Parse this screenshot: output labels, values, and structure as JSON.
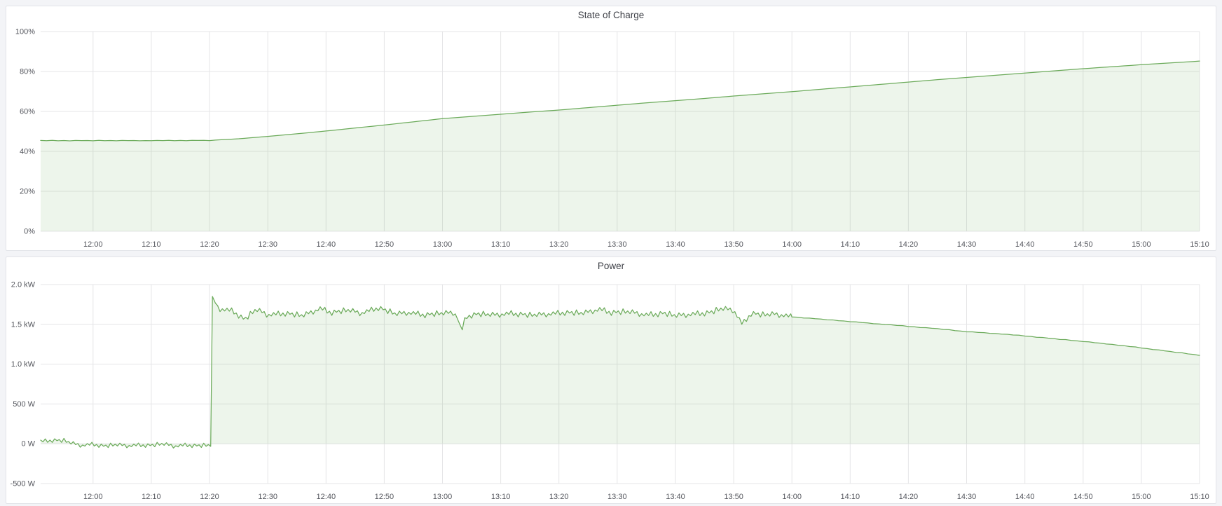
{
  "colors": {
    "series_green_line": "#6cab5b",
    "series_green_fill": "rgba(108,171,91,0.12)",
    "grid_line": "#e5e5e7",
    "panel_background": "#ffffff",
    "page_background": "#f3f4f7",
    "tick_text": "#55575e",
    "title_text": "#3f4148"
  },
  "noise_cycle": [
    0.55,
    -0.3,
    0.9,
    -0.75,
    0.15,
    -1,
    0.65,
    -0.15,
    0.4,
    -0.85,
    1,
    -0.45,
    0.25,
    -0.6,
    0.8,
    -0.2,
    0.5,
    -0.95,
    0.1,
    -0.5
  ],
  "chart_data": [
    {
      "type": "area",
      "title": "State of Charge",
      "xlabel": "",
      "ylabel": "",
      "unit": "percent",
      "ylim": [
        0,
        100
      ],
      "x_range_minutes": [
        711,
        910
      ],
      "grid": true,
      "legend": "none",
      "y_ticks": [
        {
          "v": 100,
          "label": "100%"
        },
        {
          "v": 80,
          "label": "80%"
        },
        {
          "v": 60,
          "label": "60%"
        },
        {
          "v": 40,
          "label": "40%"
        },
        {
          "v": 20,
          "label": "20%"
        },
        {
          "v": 0,
          "label": "0%"
        }
      ],
      "x_ticks": [
        {
          "t": 720,
          "label": "12:00"
        },
        {
          "t": 730,
          "label": "12:10"
        },
        {
          "t": 740,
          "label": "12:20"
        },
        {
          "t": 750,
          "label": "12:30"
        },
        {
          "t": 760,
          "label": "12:40"
        },
        {
          "t": 770,
          "label": "12:50"
        },
        {
          "t": 780,
          "label": "13:00"
        },
        {
          "t": 790,
          "label": "13:10"
        },
        {
          "t": 800,
          "label": "13:20"
        },
        {
          "t": 810,
          "label": "13:30"
        },
        {
          "t": 820,
          "label": "13:40"
        },
        {
          "t": 830,
          "label": "13:50"
        },
        {
          "t": 840,
          "label": "14:00"
        },
        {
          "t": 850,
          "label": "14:10"
        },
        {
          "t": 860,
          "label": "14:20"
        },
        {
          "t": 870,
          "label": "14:30"
        },
        {
          "t": 880,
          "label": "14:40"
        },
        {
          "t": 890,
          "label": "14:50"
        },
        {
          "t": 900,
          "label": "15:00"
        },
        {
          "t": 910,
          "label": "15:10"
        }
      ],
      "series": [
        {
          "name": "State of Charge",
          "fill_to_value": 0,
          "anchors": [
            [
              711,
              45.4
            ],
            [
              720,
              45.4
            ],
            [
              730,
              45.4
            ],
            [
              740,
              45.5
            ],
            [
              745,
              46.3
            ],
            [
              750,
              47.5
            ],
            [
              755,
              48.8
            ],
            [
              760,
              50.2
            ],
            [
              765,
              51.7
            ],
            [
              770,
              53.2
            ],
            [
              775,
              54.8
            ],
            [
              780,
              56.4
            ],
            [
              785,
              57.5
            ],
            [
              790,
              58.6
            ],
            [
              795,
              59.7
            ],
            [
              800,
              60.7
            ],
            [
              805,
              61.9
            ],
            [
              810,
              63.1
            ],
            [
              815,
              64.3
            ],
            [
              820,
              65.4
            ],
            [
              825,
              66.5
            ],
            [
              830,
              67.7
            ],
            [
              835,
              68.8
            ],
            [
              840,
              69.9
            ],
            [
              845,
              71.1
            ],
            [
              850,
              72.3
            ],
            [
              855,
              73.5
            ],
            [
              860,
              74.7
            ],
            [
              865,
              75.9
            ],
            [
              870,
              77.0
            ],
            [
              875,
              78.1
            ],
            [
              880,
              79.2
            ],
            [
              885,
              80.3
            ],
            [
              890,
              81.4
            ],
            [
              895,
              82.4
            ],
            [
              900,
              83.4
            ],
            [
              905,
              84.3
            ],
            [
              910,
              85.2
            ]
          ],
          "segments": [
            {
              "from": 711,
              "to": 740,
              "amp": 0.12,
              "step": 1
            },
            {
              "from": 741,
              "to": 910,
              "amp": 0,
              "step": 1
            }
          ]
        }
      ]
    },
    {
      "type": "area",
      "title": "Power",
      "xlabel": "",
      "ylabel": "",
      "unit": "watt",
      "ylim": [
        -500,
        2000
      ],
      "x_range_minutes": [
        711,
        910
      ],
      "grid": true,
      "legend": "none",
      "y_ticks": [
        {
          "v": 2000,
          "label": "2.0 kW"
        },
        {
          "v": 1500,
          "label": "1.5 kW"
        },
        {
          "v": 1000,
          "label": "1.0 kW"
        },
        {
          "v": 500,
          "label": "500 W"
        },
        {
          "v": 0,
          "label": "0 W"
        },
        {
          "v": -500,
          "label": "-500 W"
        }
      ],
      "x_ticks": [
        {
          "t": 720,
          "label": "12:00"
        },
        {
          "t": 730,
          "label": "12:10"
        },
        {
          "t": 740,
          "label": "12:20"
        },
        {
          "t": 750,
          "label": "12:30"
        },
        {
          "t": 760,
          "label": "12:40"
        },
        {
          "t": 770,
          "label": "12:50"
        },
        {
          "t": 780,
          "label": "13:00"
        },
        {
          "t": 790,
          "label": "13:10"
        },
        {
          "t": 800,
          "label": "13:20"
        },
        {
          "t": 810,
          "label": "13:30"
        },
        {
          "t": 820,
          "label": "13:40"
        },
        {
          "t": 830,
          "label": "13:50"
        },
        {
          "t": 840,
          "label": "14:00"
        },
        {
          "t": 850,
          "label": "14:10"
        },
        {
          "t": 860,
          "label": "14:20"
        },
        {
          "t": 870,
          "label": "14:30"
        },
        {
          "t": 880,
          "label": "14:40"
        },
        {
          "t": 890,
          "label": "14:50"
        },
        {
          "t": 900,
          "label": "15:00"
        },
        {
          "t": 910,
          "label": "15:10"
        }
      ],
      "series": [
        {
          "name": "Power",
          "fill_to_value": 0,
          "anchors": [
            [
              711,
              30
            ],
            [
              713,
              45
            ],
            [
              715,
              40
            ],
            [
              717,
              -5
            ],
            [
              718,
              -20
            ],
            [
              720,
              -5
            ],
            [
              722,
              -30
            ],
            [
              724,
              -10
            ],
            [
              726,
              -25
            ],
            [
              728,
              -15
            ],
            [
              730,
              -20
            ],
            [
              732,
              0
            ],
            [
              734,
              -30
            ],
            [
              736,
              -15
            ],
            [
              738,
              -25
            ],
            [
              740.4,
              -15
            ],
            [
              740.5,
              1850
            ],
            [
              741.5,
              1700
            ],
            [
              744,
              1670
            ],
            [
              746,
              1560
            ],
            [
              748,
              1690
            ],
            [
              750,
              1620
            ],
            [
              753,
              1640
            ],
            [
              756,
              1610
            ],
            [
              759,
              1700
            ],
            [
              761,
              1650
            ],
            [
              764,
              1680
            ],
            [
              766,
              1640
            ],
            [
              769,
              1710
            ],
            [
              772,
              1630
            ],
            [
              774,
              1650
            ],
            [
              777,
              1620
            ],
            [
              780,
              1640
            ],
            [
              782,
              1650
            ],
            [
              782.8,
              1560
            ],
            [
              783.2,
              1390
            ],
            [
              784,
              1600
            ],
            [
              786,
              1630
            ],
            [
              789,
              1620
            ],
            [
              792,
              1640
            ],
            [
              795,
              1615
            ],
            [
              798,
              1630
            ],
            [
              801,
              1650
            ],
            [
              804,
              1640
            ],
            [
              807,
              1690
            ],
            [
              809,
              1650
            ],
            [
              812,
              1660
            ],
            [
              815,
              1620
            ],
            [
              818,
              1640
            ],
            [
              820,
              1610
            ],
            [
              823,
              1630
            ],
            [
              826,
              1650
            ],
            [
              828,
              1700
            ],
            [
              830,
              1680
            ],
            [
              831.5,
              1500
            ],
            [
              833,
              1640
            ],
            [
              835,
              1620
            ],
            [
              837,
              1630
            ],
            [
              839,
              1610
            ],
            [
              840,
              1595
            ],
            [
              845,
              1565
            ],
            [
              850,
              1535
            ],
            [
              855,
              1505
            ],
            [
              860,
              1475
            ],
            [
              865,
              1445
            ],
            [
              870,
              1408
            ],
            [
              875,
              1385
            ],
            [
              880,
              1355
            ],
            [
              885,
              1320
            ],
            [
              890,
              1285
            ],
            [
              895,
              1248
            ],
            [
              900,
              1205
            ],
            [
              905,
              1158
            ],
            [
              910,
              1112
            ]
          ],
          "segments": [
            {
              "from": 711,
              "to": 740.4,
              "amp": 28,
              "step": 0.4
            },
            {
              "from": 740.5,
              "to": 740.5,
              "amp": 0,
              "step": 1
            },
            {
              "from": 741,
              "to": 839.8,
              "amp": 38,
              "step": 0.4
            },
            {
              "from": 840,
              "to": 910,
              "amp": 3,
              "step": 1
            }
          ]
        }
      ]
    }
  ]
}
